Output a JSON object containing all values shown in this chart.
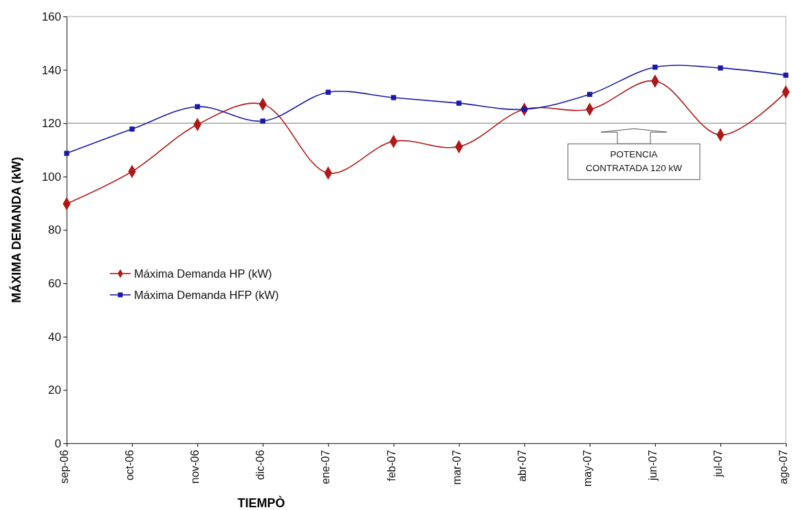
{
  "chart_data": {
    "type": "line",
    "xlabel": "TIEMPÒ",
    "ylabel": "MÁXIMA DEMANDA (kW)",
    "categories": [
      "sep-06",
      "oct-06",
      "nov-06",
      "dic-06",
      "ene-07",
      "feb-07",
      "mar-07",
      "abr-07",
      "may-07",
      "jun-07",
      "jul-07",
      "ago-07"
    ],
    "series": [
      {
        "name": "Máxima Demanda HP (kW)",
        "color": "#b01818",
        "marker": "diamond",
        "values": [
          89.8,
          101.9,
          119.5,
          127.1,
          101.3,
          113.2,
          111.2,
          125.2,
          125.2,
          135.8,
          115.6,
          131.7
        ]
      },
      {
        "name": "Máxima Demanda HFP (kW)",
        "color": "#1a1aa6",
        "marker": "square",
        "values": [
          108.7,
          117.8,
          126.2,
          120.8,
          131.6,
          129.6,
          127.5,
          125.2,
          130.8,
          141,
          140.7,
          138
        ]
      }
    ],
    "ylim": [
      0,
      160
    ],
    "yticks": [
      0,
      20,
      40,
      60,
      80,
      100,
      120,
      140,
      160
    ],
    "ref_lines": [
      {
        "axis": "y",
        "value": 120,
        "label": "POTENCIA\nCONTRATADA 120 kW",
        "color": "#777777"
      }
    ],
    "legend": "left",
    "grid": false
  }
}
